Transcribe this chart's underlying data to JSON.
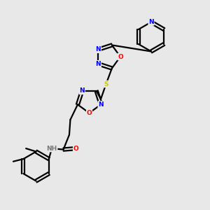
{
  "background_color": "#e8e8e8",
  "bond_color": "#000000",
  "bond_width": 1.6,
  "atoms": {
    "N_color": "#0000FF",
    "O_color": "#FF0000",
    "S_color": "#CCCC00",
    "C_color": "#000000",
    "H_color": "#777777"
  },
  "xlim": [
    0,
    10
  ],
  "ylim": [
    0,
    10
  ]
}
